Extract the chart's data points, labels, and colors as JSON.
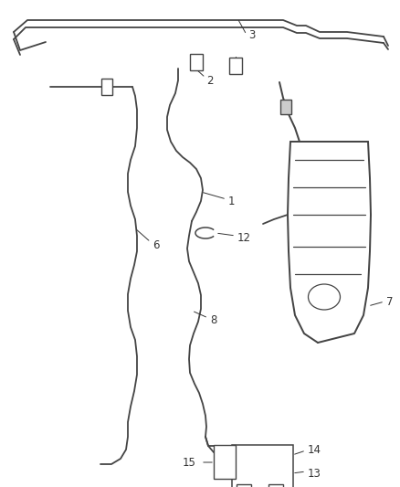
{
  "background_color": "#ffffff",
  "line_color": "#444444",
  "label_color": "#333333",
  "font_size": 8.5,
  "lw": 1.3
}
